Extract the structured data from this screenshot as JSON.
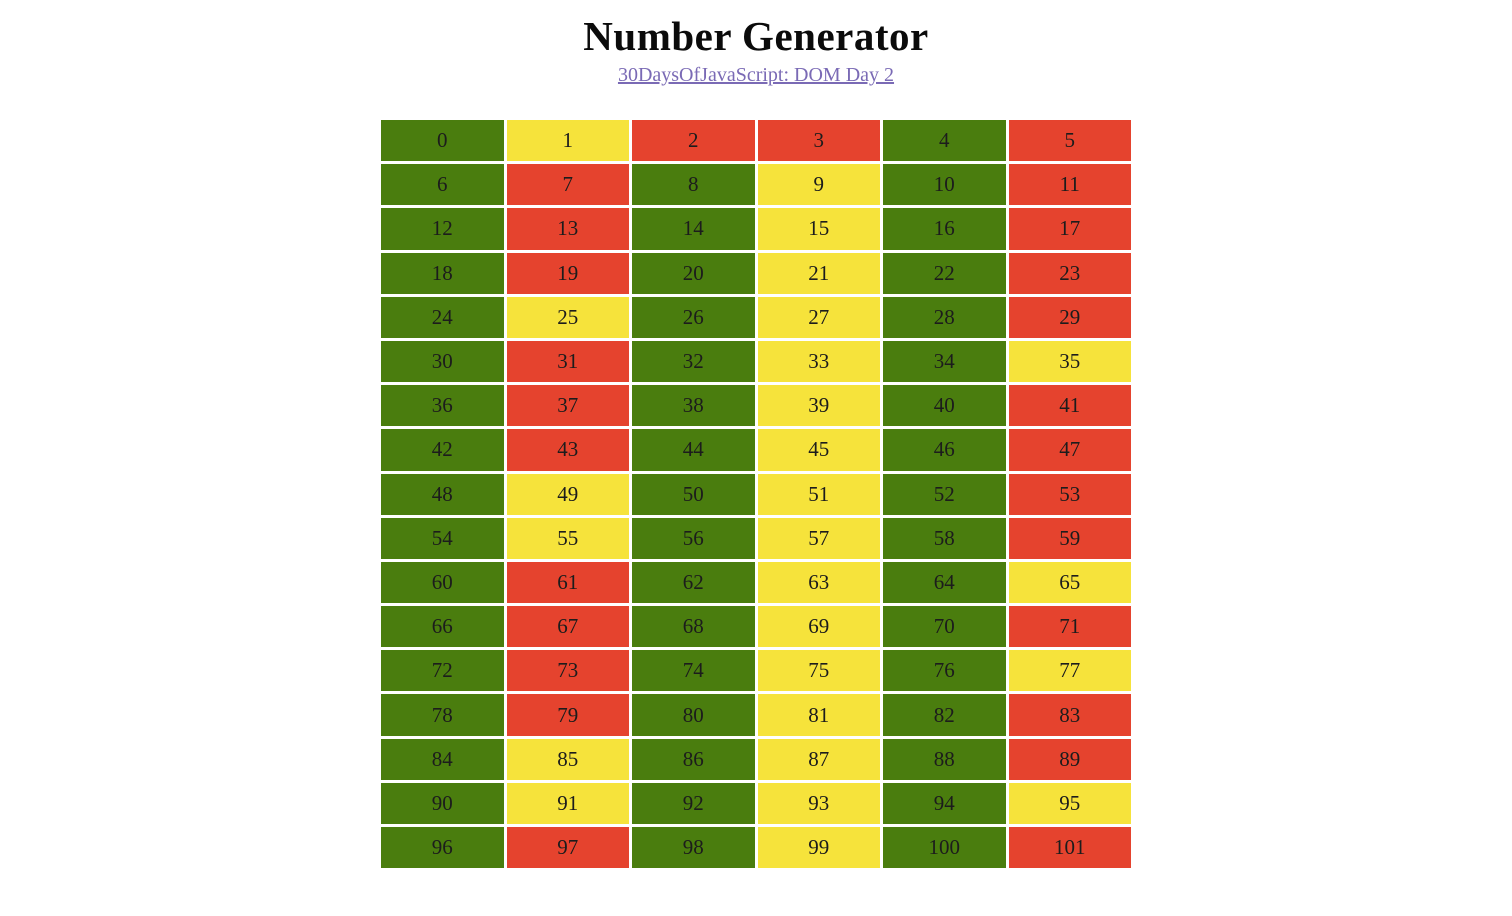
{
  "header": {
    "title": "Number Generator",
    "subtitle_link": {
      "label": "30DaysOfJavaScript: DOM Day 2"
    }
  },
  "colors": {
    "even": "#4a7d0e",
    "odd": "#f6e33b",
    "prime": "#e5432e",
    "link": "#7a6ab5",
    "cell_text": "#1c1c1c",
    "background": "#ffffff"
  },
  "grid": {
    "columns": 6,
    "cells": [
      {
        "value": 0,
        "status": "even"
      },
      {
        "value": 1,
        "status": "odd"
      },
      {
        "value": 2,
        "status": "prime"
      },
      {
        "value": 3,
        "status": "prime"
      },
      {
        "value": 4,
        "status": "even"
      },
      {
        "value": 5,
        "status": "prime"
      },
      {
        "value": 6,
        "status": "even"
      },
      {
        "value": 7,
        "status": "prime"
      },
      {
        "value": 8,
        "status": "even"
      },
      {
        "value": 9,
        "status": "odd"
      },
      {
        "value": 10,
        "status": "even"
      },
      {
        "value": 11,
        "status": "prime"
      },
      {
        "value": 12,
        "status": "even"
      },
      {
        "value": 13,
        "status": "prime"
      },
      {
        "value": 14,
        "status": "even"
      },
      {
        "value": 15,
        "status": "odd"
      },
      {
        "value": 16,
        "status": "even"
      },
      {
        "value": 17,
        "status": "prime"
      },
      {
        "value": 18,
        "status": "even"
      },
      {
        "value": 19,
        "status": "prime"
      },
      {
        "value": 20,
        "status": "even"
      },
      {
        "value": 21,
        "status": "odd"
      },
      {
        "value": 22,
        "status": "even"
      },
      {
        "value": 23,
        "status": "prime"
      },
      {
        "value": 24,
        "status": "even"
      },
      {
        "value": 25,
        "status": "odd"
      },
      {
        "value": 26,
        "status": "even"
      },
      {
        "value": 27,
        "status": "odd"
      },
      {
        "value": 28,
        "status": "even"
      },
      {
        "value": 29,
        "status": "prime"
      },
      {
        "value": 30,
        "status": "even"
      },
      {
        "value": 31,
        "status": "prime"
      },
      {
        "value": 32,
        "status": "even"
      },
      {
        "value": 33,
        "status": "odd"
      },
      {
        "value": 34,
        "status": "even"
      },
      {
        "value": 35,
        "status": "odd"
      },
      {
        "value": 36,
        "status": "even"
      },
      {
        "value": 37,
        "status": "prime"
      },
      {
        "value": 38,
        "status": "even"
      },
      {
        "value": 39,
        "status": "odd"
      },
      {
        "value": 40,
        "status": "even"
      },
      {
        "value": 41,
        "status": "prime"
      },
      {
        "value": 42,
        "status": "even"
      },
      {
        "value": 43,
        "status": "prime"
      },
      {
        "value": 44,
        "status": "even"
      },
      {
        "value": 45,
        "status": "odd"
      },
      {
        "value": 46,
        "status": "even"
      },
      {
        "value": 47,
        "status": "prime"
      },
      {
        "value": 48,
        "status": "even"
      },
      {
        "value": 49,
        "status": "odd"
      },
      {
        "value": 50,
        "status": "even"
      },
      {
        "value": 51,
        "status": "odd"
      },
      {
        "value": 52,
        "status": "even"
      },
      {
        "value": 53,
        "status": "prime"
      },
      {
        "value": 54,
        "status": "even"
      },
      {
        "value": 55,
        "status": "odd"
      },
      {
        "value": 56,
        "status": "even"
      },
      {
        "value": 57,
        "status": "odd"
      },
      {
        "value": 58,
        "status": "even"
      },
      {
        "value": 59,
        "status": "prime"
      },
      {
        "value": 60,
        "status": "even"
      },
      {
        "value": 61,
        "status": "prime"
      },
      {
        "value": 62,
        "status": "even"
      },
      {
        "value": 63,
        "status": "odd"
      },
      {
        "value": 64,
        "status": "even"
      },
      {
        "value": 65,
        "status": "odd"
      },
      {
        "value": 66,
        "status": "even"
      },
      {
        "value": 67,
        "status": "prime"
      },
      {
        "value": 68,
        "status": "even"
      },
      {
        "value": 69,
        "status": "odd"
      },
      {
        "value": 70,
        "status": "even"
      },
      {
        "value": 71,
        "status": "prime"
      },
      {
        "value": 72,
        "status": "even"
      },
      {
        "value": 73,
        "status": "prime"
      },
      {
        "value": 74,
        "status": "even"
      },
      {
        "value": 75,
        "status": "odd"
      },
      {
        "value": 76,
        "status": "even"
      },
      {
        "value": 77,
        "status": "odd"
      },
      {
        "value": 78,
        "status": "even"
      },
      {
        "value": 79,
        "status": "prime"
      },
      {
        "value": 80,
        "status": "even"
      },
      {
        "value": 81,
        "status": "odd"
      },
      {
        "value": 82,
        "status": "even"
      },
      {
        "value": 83,
        "status": "prime"
      },
      {
        "value": 84,
        "status": "even"
      },
      {
        "value": 85,
        "status": "odd"
      },
      {
        "value": 86,
        "status": "even"
      },
      {
        "value": 87,
        "status": "odd"
      },
      {
        "value": 88,
        "status": "even"
      },
      {
        "value": 89,
        "status": "prime"
      },
      {
        "value": 90,
        "status": "even"
      },
      {
        "value": 91,
        "status": "odd"
      },
      {
        "value": 92,
        "status": "even"
      },
      {
        "value": 93,
        "status": "odd"
      },
      {
        "value": 94,
        "status": "even"
      },
      {
        "value": 95,
        "status": "odd"
      },
      {
        "value": 96,
        "status": "even"
      },
      {
        "value": 97,
        "status": "prime"
      },
      {
        "value": 98,
        "status": "even"
      },
      {
        "value": 99,
        "status": "odd"
      },
      {
        "value": 100,
        "status": "even"
      },
      {
        "value": 101,
        "status": "prime"
      }
    ]
  }
}
